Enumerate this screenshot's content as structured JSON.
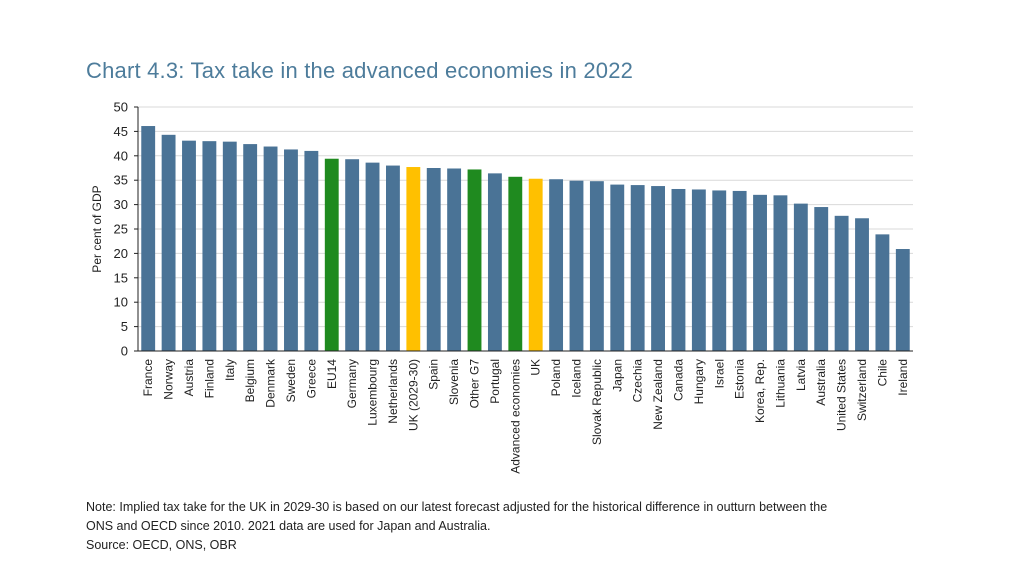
{
  "chart_data": {
    "type": "bar",
    "title": "Chart 4.3: Tax take in the advanced economies in 2022",
    "xlabel": "",
    "ylabel": "Per cent of GDP",
    "ylim": [
      0,
      50
    ],
    "yticks": [
      0,
      5,
      10,
      15,
      20,
      25,
      30,
      35,
      40,
      45,
      50
    ],
    "grid": true,
    "categories": [
      "France",
      "Norway",
      "Austria",
      "Finland",
      "Italy",
      "Belgium",
      "Denmark",
      "Sweden",
      "Greece",
      "EU14",
      "Germany",
      "Luxembourg",
      "Netherlands",
      "UK (2029-30)",
      "Spain",
      "Slovenia",
      "Other G7",
      "Portugal",
      "Advanced economies",
      "UK",
      "Poland",
      "Iceland",
      "Slovak Republic",
      "Japan",
      "Czechia",
      "New Zealand",
      "Canada",
      "Hungary",
      "Israel",
      "Estonia",
      "Korea, Rep.",
      "Lithuania",
      "Latvia",
      "Australia",
      "United States",
      "Switzerland",
      "Chile",
      "Ireland"
    ],
    "values": [
      46.1,
      44.3,
      43.1,
      43.0,
      42.9,
      42.4,
      41.9,
      41.3,
      41.0,
      39.4,
      39.3,
      38.6,
      38.0,
      37.7,
      37.5,
      37.4,
      37.2,
      36.4,
      35.7,
      35.3,
      35.2,
      34.9,
      34.8,
      34.1,
      34.0,
      33.8,
      33.2,
      33.1,
      32.9,
      32.8,
      32.0,
      31.9,
      30.2,
      29.5,
      27.7,
      27.2,
      23.9,
      20.9
    ],
    "highlights": {
      "EU14": "green",
      "Other G7": "green",
      "Advanced economies": "green",
      "UK (2029-30)": "yellow",
      "UK": "yellow"
    },
    "colors": {
      "default": "#4a7396",
      "green": "#1f8a1f",
      "yellow": "#ffc000",
      "grid": "#d9d9d9",
      "axis": "#222222"
    }
  },
  "notes": {
    "line1": "Note: Implied tax take for the UK in 2029-30 is based on our latest forecast adjusted for the historical difference in outturn between the",
    "line2": "ONS and OECD since 2010. 2021 data are used for Japan and Australia.",
    "source": "Source: OECD, ONS, OBR"
  }
}
